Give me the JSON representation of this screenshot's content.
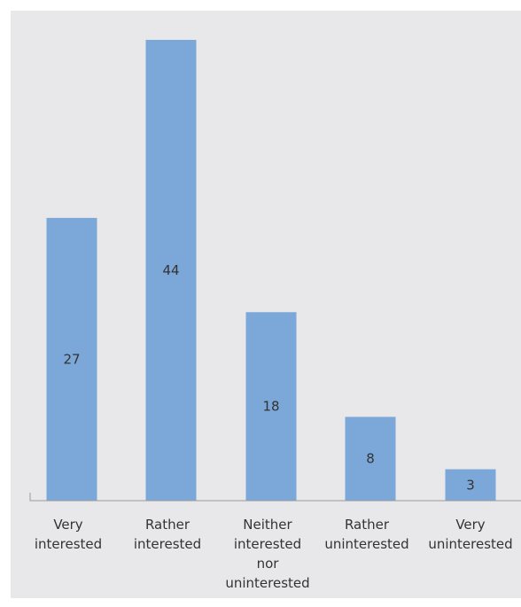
{
  "chart_data": {
    "type": "bar",
    "categories": [
      "Very interested",
      "Rather interested",
      "Neither interested nor uninterested",
      "Rather uninterested",
      "Very uninterested"
    ],
    "category_lines": [
      [
        "Very",
        "interested"
      ],
      [
        "Rather",
        "interested"
      ],
      [
        "Neither",
        "interested",
        "nor",
        "uninterested"
      ],
      [
        "Rather",
        "uninterested"
      ],
      [
        "Very",
        "uninterested"
      ]
    ],
    "values": [
      27,
      44,
      18,
      8,
      3
    ],
    "data_labels": [
      "27",
      "44",
      "18",
      "8",
      "3"
    ],
    "ylim": [
      0,
      44
    ],
    "bar_color": "#7ba7d9",
    "background_color": "#e8e8ea",
    "grid": false,
    "legend": "none"
  }
}
